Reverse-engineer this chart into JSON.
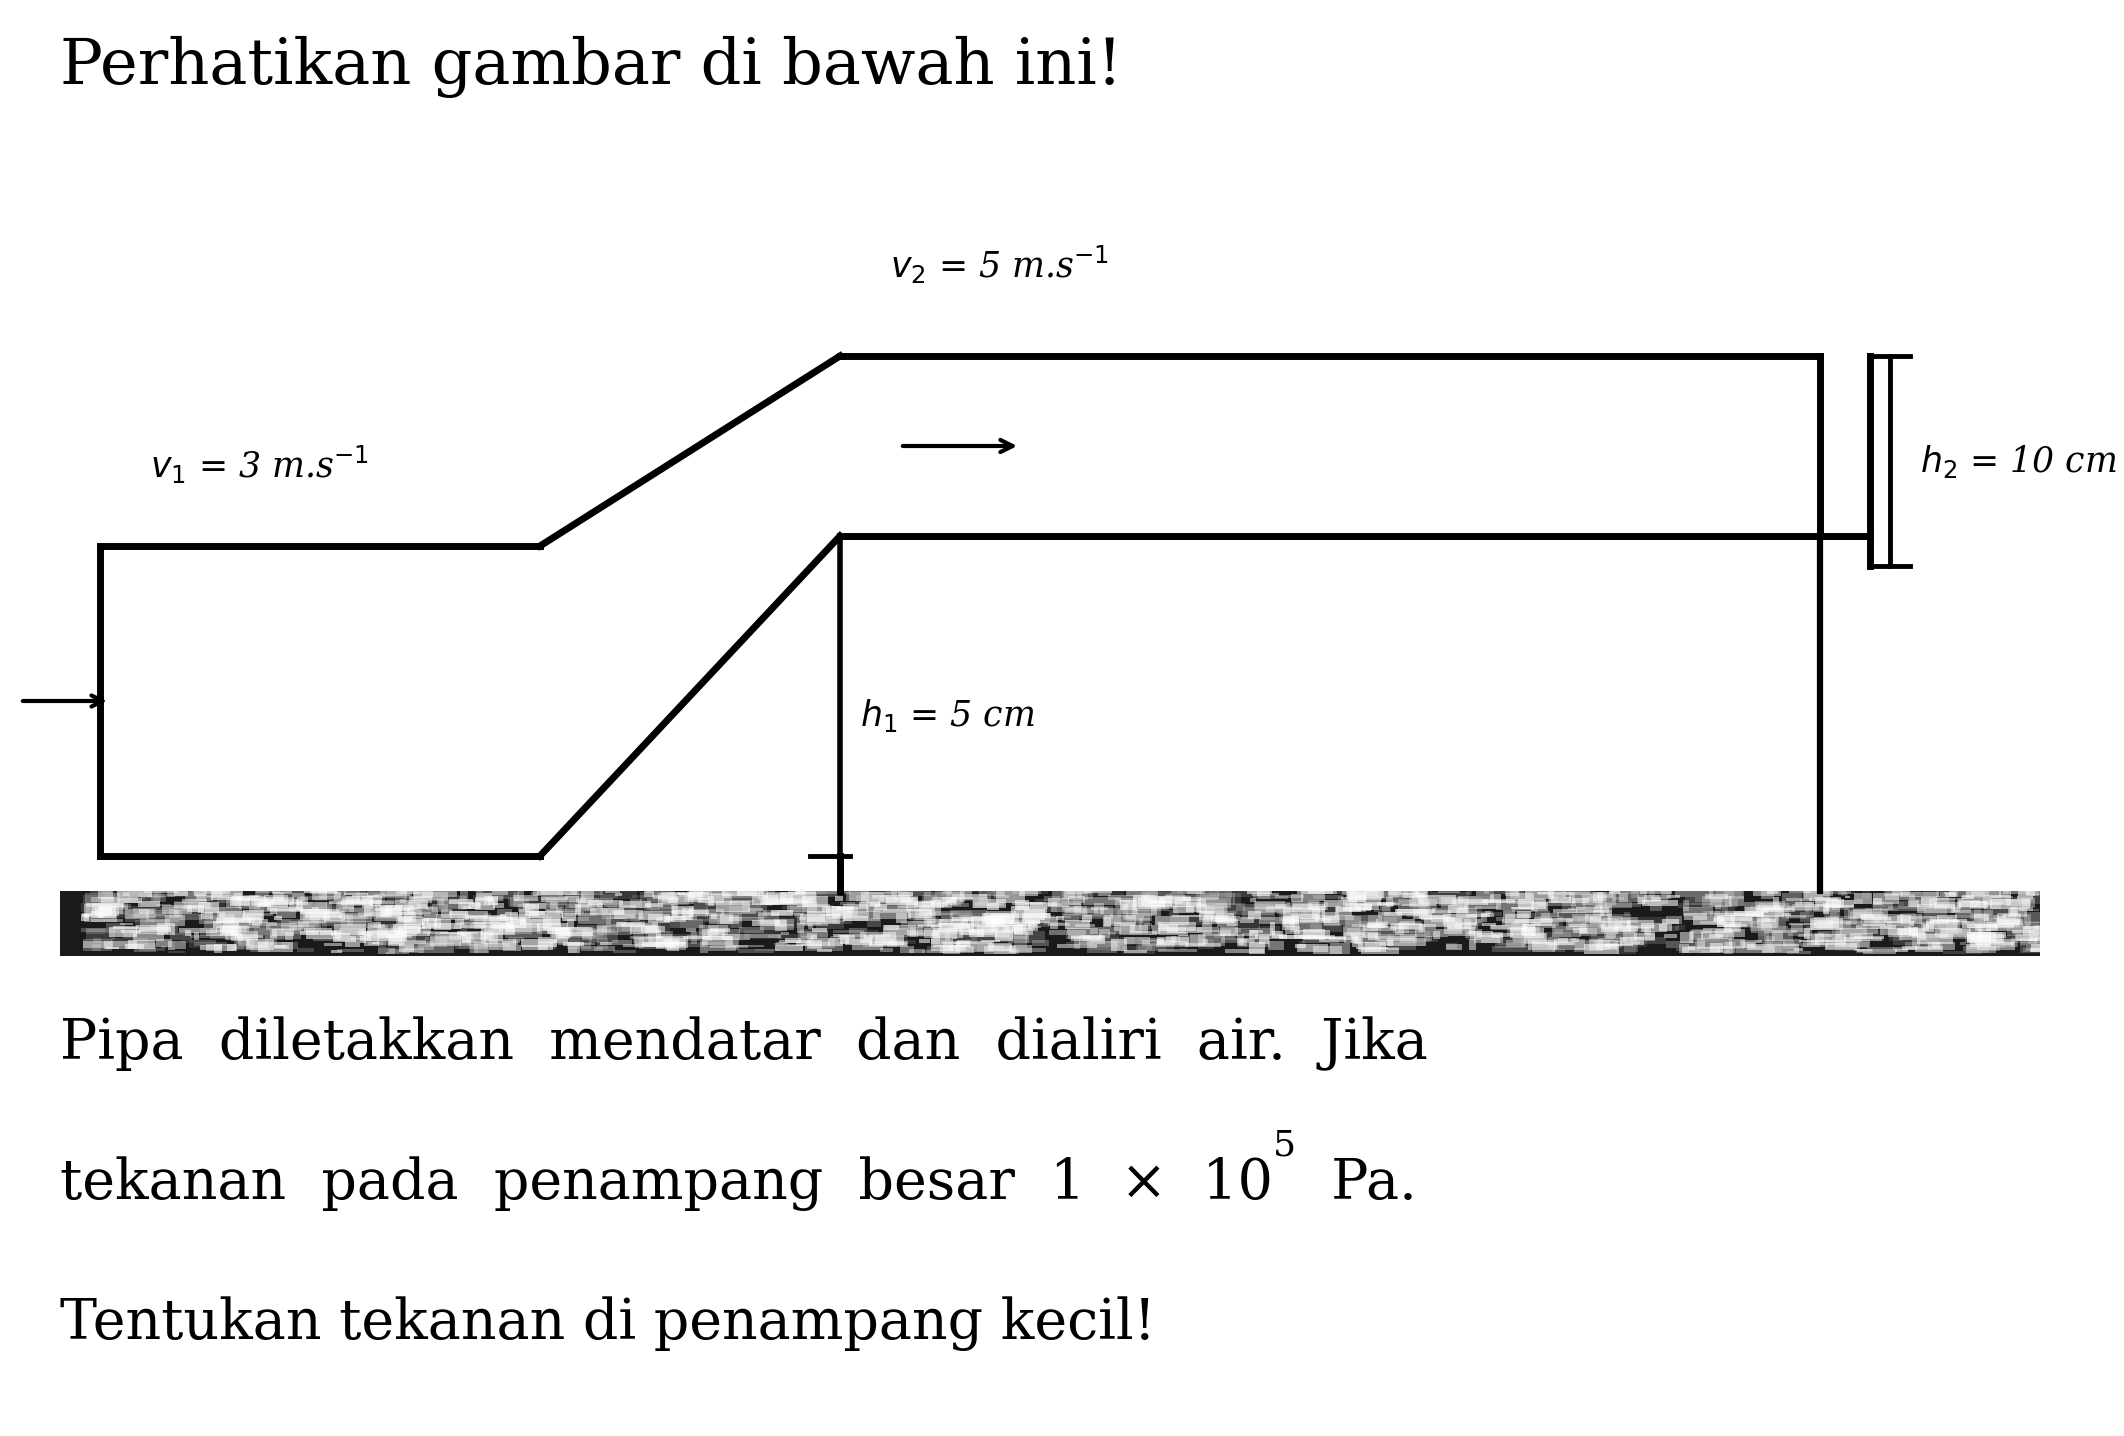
{
  "title": "Perhatikan gambar di bawah ini!",
  "title_fontsize": 46,
  "label_v1": "v1 = 3 m.s-1",
  "label_v2": "v2 = 5 m.s-1",
  "label_h1": "h1 = 5 cm",
  "label_h2": "h2 = 10 cm",
  "bg_color": "#ffffff",
  "pipe_color": "#000000",
  "line_width": 5.0,
  "body_line1": "Pipa  diletakkan  mendatar  dan  dialiri  air.  Jika",
  "body_line2_pre": "tekanan  pada  penampang  besar  1  ×  10",
  "body_line2_sup": "5",
  "body_line2_post": "  Pa.",
  "body_line3": "Tentukan tekanan di penampang kecil!",
  "body_fontsize": 40,
  "label_fontsize": 25
}
